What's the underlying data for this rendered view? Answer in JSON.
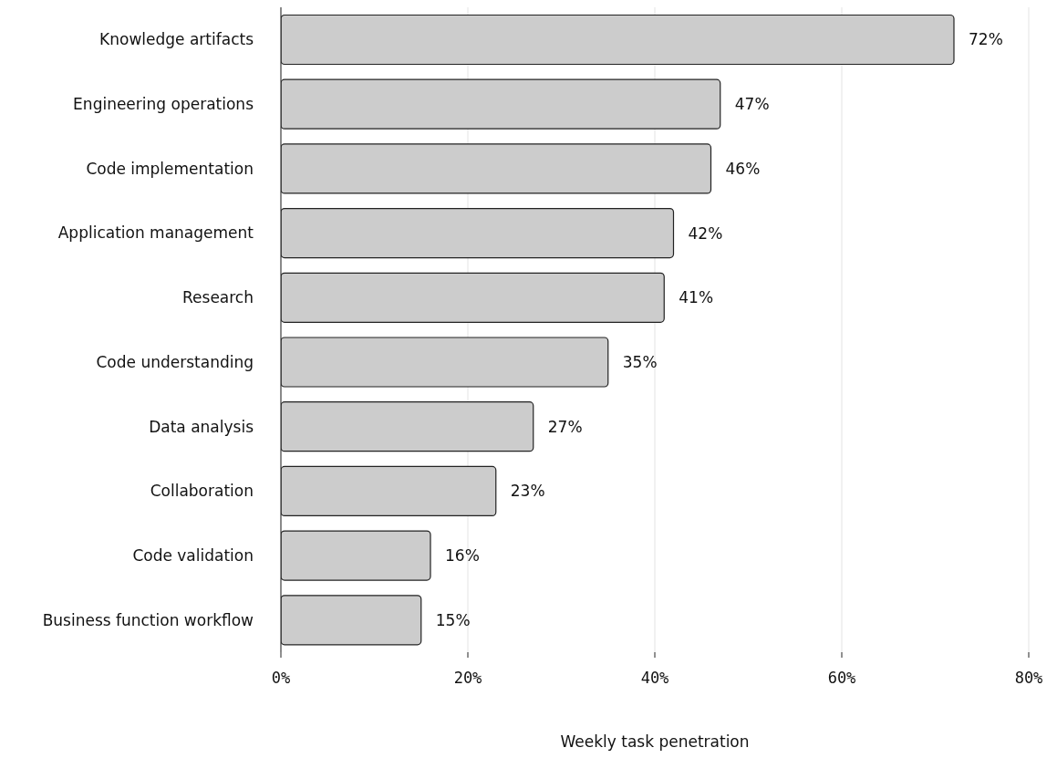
{
  "chart_data": {
    "type": "bar",
    "orientation": "horizontal",
    "xlabel": "Weekly task penetration",
    "categories": [
      "Knowledge artifacts",
      "Engineering operations",
      "Code implementation",
      "Application management",
      "Research",
      "Code understanding",
      "Data analysis",
      "Collaboration",
      "Code validation",
      "Business function workflow"
    ],
    "values": [
      72,
      47,
      46,
      42,
      41,
      35,
      27,
      23,
      16,
      15
    ],
    "value_labels": [
      "72%",
      "47%",
      "46%",
      "42%",
      "41%",
      "35%",
      "27%",
      "23%",
      "16%",
      "15%"
    ],
    "color": "#cccccc",
    "xlim": [
      0,
      80
    ],
    "xticks": [
      {
        "value": 0,
        "label": "0%"
      },
      {
        "value": 20,
        "label": "20%"
      },
      {
        "value": 40,
        "label": "40%"
      },
      {
        "value": 60,
        "label": "60%"
      },
      {
        "value": 80,
        "label": "80%"
      }
    ],
    "grid": "x"
  }
}
